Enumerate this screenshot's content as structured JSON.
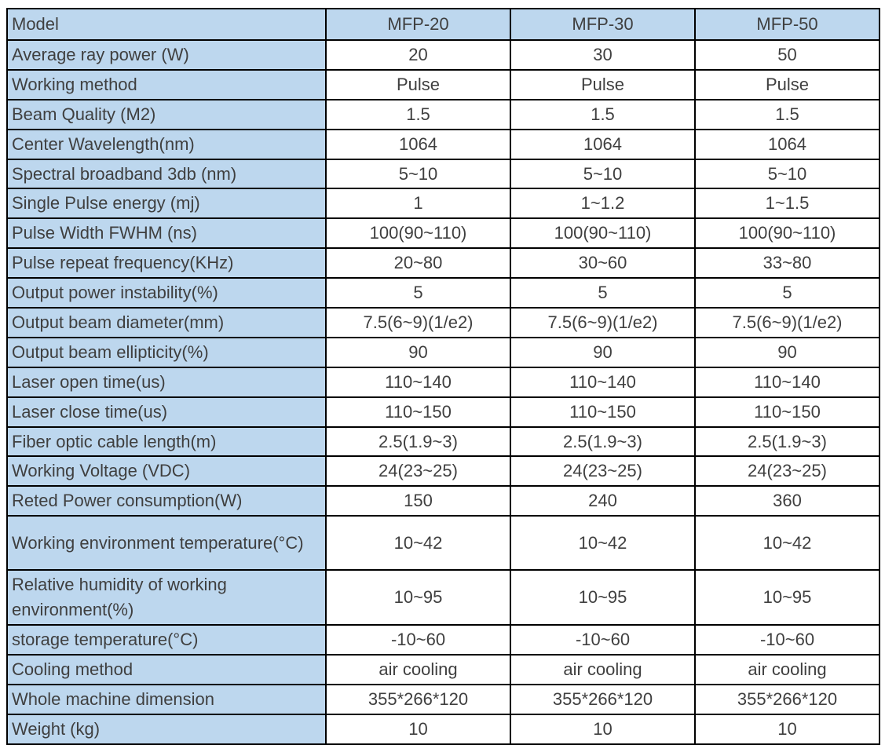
{
  "table": {
    "colors": {
      "header_and_label_bg": "#bdd7ee",
      "value_bg": "#ffffff",
      "border": "#000000",
      "text": "#3f3f3f"
    },
    "header": {
      "label": "Model",
      "columns": [
        "MFP-20",
        "MFP-30",
        "MFP-50"
      ]
    },
    "rows": [
      {
        "label": "Average ray power (W)",
        "values": [
          "20",
          "30",
          "50"
        ]
      },
      {
        "label": "Working method",
        "values": [
          "Pulse",
          "Pulse",
          "Pulse"
        ]
      },
      {
        "label": "Beam Quality (M2)",
        "values": [
          "1.5",
          "1.5",
          "1.5"
        ]
      },
      {
        "label": "Center Wavelength(nm)",
        "values": [
          "1064",
          "1064",
          "1064"
        ]
      },
      {
        "label": "Spectral broadband 3db (nm)",
        "values": [
          "5~10",
          "5~10",
          "5~10"
        ]
      },
      {
        "label": "Single Pulse energy (mj)",
        "values": [
          "1",
          "1~1.2",
          "1~1.5"
        ]
      },
      {
        "label": "Pulse Width FWHM (ns)",
        "values": [
          "100(90~110)",
          "100(90~110)",
          "100(90~110)"
        ]
      },
      {
        "label": "Pulse repeat frequency(KHz)",
        "values": [
          "20~80",
          "30~60",
          "33~80"
        ]
      },
      {
        "label": "Output power instability(%)",
        "values": [
          "5",
          "5",
          "5"
        ]
      },
      {
        "label": "Output beam diameter(mm)",
        "values": [
          "7.5(6~9)(1/e2)",
          "7.5(6~9)(1/e2)",
          "7.5(6~9)(1/e2)"
        ]
      },
      {
        "label": "Output beam ellipticity(%)",
        "values": [
          "90",
          "90",
          "90"
        ]
      },
      {
        "label": "Laser open time(us)",
        "values": [
          "110~140",
          "110~140",
          "110~140"
        ]
      },
      {
        "label": "Laser close time(us)",
        "values": [
          "110~150",
          "110~150",
          "110~150"
        ]
      },
      {
        "label": "Fiber optic cable length(m)",
        "values": [
          "2.5(1.9~3)",
          "2.5(1.9~3)",
          "2.5(1.9~3)"
        ]
      },
      {
        "label": "Working Voltage (VDC)",
        "values": [
          "24(23~25)",
          "24(23~25)",
          "24(23~25)"
        ]
      },
      {
        "label": "Reted Power consumption(W)",
        "values": [
          "150",
          "240",
          "360"
        ]
      },
      {
        "label": "Working environment temperature(°C)",
        "values": [
          "10~42",
          "10~42",
          "10~42"
        ],
        "tall": true
      },
      {
        "label": "Relative humidity of working environment(%)",
        "values": [
          "10~95",
          "10~95",
          "10~95"
        ],
        "tall": true
      },
      {
        "label": "storage temperature(°C)",
        "values": [
          "-10~60",
          "-10~60",
          "-10~60"
        ]
      },
      {
        "label": "Cooling method",
        "values": [
          "air cooling",
          "air cooling",
          "air cooling"
        ]
      },
      {
        "label": "Whole machine dimension",
        "values": [
          "355*266*120",
          "355*266*120",
          "355*266*120"
        ]
      },
      {
        "label": "Weight (kg)",
        "values": [
          "10",
          "10",
          "10"
        ]
      }
    ]
  }
}
